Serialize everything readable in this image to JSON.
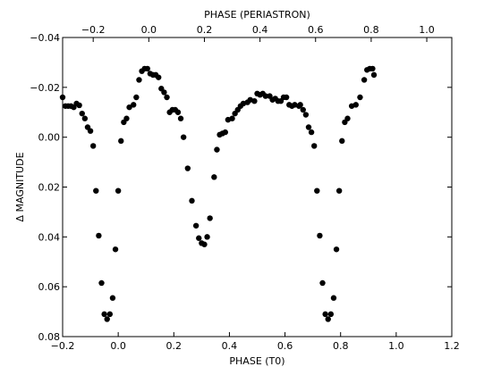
{
  "chart_data": {
    "type": "scatter",
    "xlabel": "PHASE (T0)",
    "x2label": "PHASE (PERIASTRON)",
    "ylabel": "Δ MAGNITUDE",
    "xlim": [
      -0.2,
      1.2
    ],
    "ylim": [
      0.08,
      -0.04
    ],
    "y_inverted": true,
    "x2_offset": 0.11,
    "grid": false,
    "xticks": [
      -0.2,
      0.0,
      0.2,
      0.4,
      0.6,
      0.8,
      1.0,
      1.2
    ],
    "xtick_labels": [
      "−0.2",
      "0.0",
      "0.2",
      "0.4",
      "0.6",
      "0.8",
      "1.0",
      "1.2"
    ],
    "x2ticks": [
      -0.2,
      0.0,
      0.2,
      0.4,
      0.6,
      0.8,
      1.0
    ],
    "x2tick_labels": [
      "−0.2",
      "0.0",
      "0.2",
      "0.4",
      "0.6",
      "0.8",
      "1.0"
    ],
    "yticks": [
      -0.04,
      -0.02,
      0.0,
      0.02,
      0.04,
      0.06,
      0.08
    ],
    "ytick_labels": [
      "−0.04",
      "−0.02",
      "0.00",
      "0.02",
      "0.04",
      "0.06",
      "0.08"
    ],
    "series": [
      {
        "marker": "circle",
        "color": "#000000",
        "points": [
          [
            -0.2,
            -0.016
          ],
          [
            -0.19,
            -0.0125
          ],
          [
            -0.18,
            -0.0125
          ],
          [
            -0.17,
            -0.0125
          ],
          [
            -0.16,
            -0.012
          ],
          [
            -0.15,
            -0.0135
          ],
          [
            -0.14,
            -0.0128
          ],
          [
            -0.13,
            -0.0095
          ],
          [
            -0.12,
            -0.0075
          ],
          [
            -0.11,
            -0.004
          ],
          [
            -0.1,
            -0.0025
          ],
          [
            -0.09,
            0.0035
          ],
          [
            -0.08,
            0.0215
          ],
          [
            -0.07,
            0.0395
          ],
          [
            -0.06,
            0.0585
          ],
          [
            -0.05,
            0.071
          ],
          [
            -0.04,
            0.073
          ],
          [
            -0.03,
            0.071
          ],
          [
            -0.02,
            0.0645
          ],
          [
            -0.01,
            0.045
          ],
          [
            0.0,
            0.0215
          ],
          [
            0.01,
            0.0015
          ],
          [
            0.02,
            -0.006
          ],
          [
            0.03,
            -0.0075
          ],
          [
            0.04,
            -0.012
          ],
          [
            0.055,
            -0.013
          ],
          [
            0.065,
            -0.016
          ],
          [
            0.075,
            -0.023
          ],
          [
            0.085,
            -0.0265
          ],
          [
            0.095,
            -0.0275
          ],
          [
            0.105,
            -0.0275
          ],
          [
            0.115,
            -0.0255
          ],
          [
            0.125,
            -0.025
          ],
          [
            0.135,
            -0.025
          ],
          [
            0.145,
            -0.024
          ],
          [
            0.155,
            -0.0195
          ],
          [
            0.165,
            -0.018
          ],
          [
            0.175,
            -0.016
          ],
          [
            0.185,
            -0.01
          ],
          [
            0.195,
            -0.011
          ],
          [
            0.205,
            -0.011
          ],
          [
            0.215,
            -0.01
          ],
          [
            0.225,
            -0.0075
          ],
          [
            0.235,
            0.0
          ],
          [
            0.25,
            0.0125
          ],
          [
            0.265,
            0.0255
          ],
          [
            0.28,
            0.0355
          ],
          [
            0.29,
            0.0405
          ],
          [
            0.3,
            0.0425
          ],
          [
            0.31,
            0.043
          ],
          [
            0.32,
            0.04
          ],
          [
            0.33,
            0.0325
          ],
          [
            0.345,
            0.016
          ],
          [
            0.355,
            0.005
          ],
          [
            0.365,
            -0.001
          ],
          [
            0.375,
            -0.0015
          ],
          [
            0.385,
            -0.002
          ],
          [
            0.395,
            -0.007
          ],
          [
            0.41,
            -0.0075
          ],
          [
            0.42,
            -0.0095
          ],
          [
            0.43,
            -0.011
          ],
          [
            0.44,
            -0.0125
          ],
          [
            0.45,
            -0.0135
          ],
          [
            0.465,
            -0.014
          ],
          [
            0.475,
            -0.015
          ],
          [
            0.49,
            -0.0145
          ],
          [
            0.5,
            -0.0175
          ],
          [
            0.51,
            -0.017
          ],
          [
            0.52,
            -0.0175
          ],
          [
            0.53,
            -0.0165
          ],
          [
            0.545,
            -0.0165
          ],
          [
            0.555,
            -0.015
          ],
          [
            0.565,
            -0.0155
          ],
          [
            0.575,
            -0.0145
          ],
          [
            0.585,
            -0.0145
          ],
          [
            0.595,
            -0.016
          ],
          [
            0.605,
            -0.016
          ],
          [
            0.615,
            -0.013
          ],
          [
            0.625,
            -0.0125
          ],
          [
            0.635,
            -0.013
          ],
          [
            0.65,
            -0.0125
          ],
          [
            0.655,
            -0.013
          ],
          [
            0.665,
            -0.011
          ],
          [
            0.675,
            -0.009
          ],
          [
            0.685,
            -0.004
          ],
          [
            0.695,
            -0.002
          ],
          [
            0.705,
            0.0035
          ],
          [
            0.715,
            0.0215
          ],
          [
            0.725,
            0.0395
          ],
          [
            0.735,
            0.0585
          ],
          [
            0.745,
            0.071
          ],
          [
            0.755,
            0.073
          ],
          [
            0.765,
            0.071
          ],
          [
            0.775,
            0.0645
          ],
          [
            0.785,
            0.045
          ],
          [
            0.795,
            0.0215
          ],
          [
            0.805,
            0.0015
          ],
          [
            0.815,
            -0.006
          ],
          [
            0.825,
            -0.0075
          ],
          [
            0.84,
            -0.0125
          ],
          [
            0.855,
            -0.013
          ],
          [
            0.87,
            -0.016
          ],
          [
            0.885,
            -0.023
          ],
          [
            0.895,
            -0.027
          ],
          [
            0.905,
            -0.0275
          ],
          [
            0.915,
            -0.0275
          ],
          [
            0.92,
            -0.025
          ]
        ]
      }
    ]
  }
}
